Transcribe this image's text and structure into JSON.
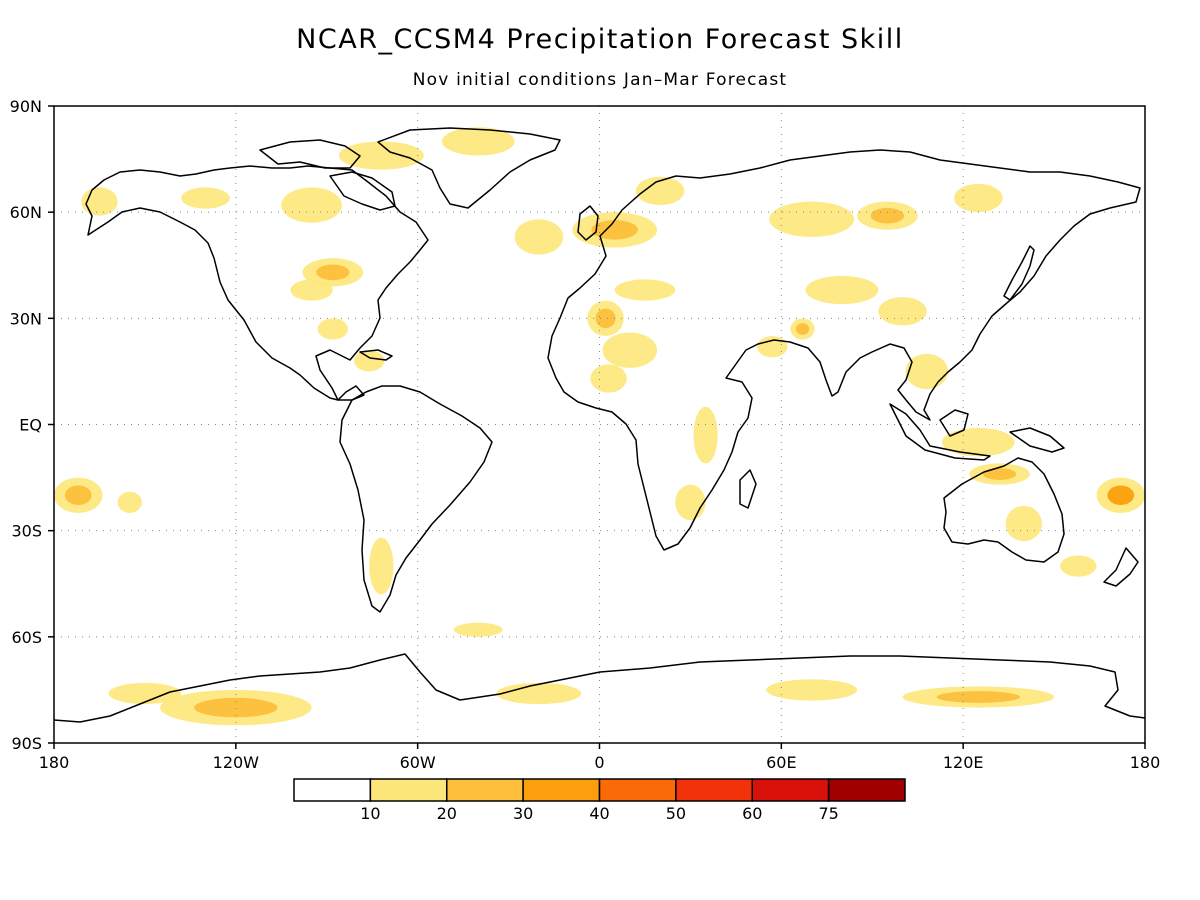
{
  "title": "NCAR_CCSM4 Precipitation Forecast Skill",
  "subtitle": "Nov initial conditions  Jan–Mar Forecast",
  "map": {
    "lat_labels": [
      "90N",
      "60N",
      "30N",
      "EQ",
      "30S",
      "60S",
      "90S"
    ],
    "lat_values": [
      90,
      60,
      30,
      0,
      -30,
      -60,
      -90
    ],
    "lon_labels": [
      "180",
      "120W",
      "60W",
      "0",
      "60E",
      "120E",
      "180"
    ],
    "lon_values": [
      -180,
      -120,
      -60,
      0,
      60,
      120,
      180
    ],
    "grid": "dotted",
    "coastline_color": "#000000"
  },
  "legend": {
    "colors": [
      "#ffffff",
      "#fee77a",
      "#fdbf3c",
      "#fc9f0c",
      "#fa6a06",
      "#f2330a",
      "#d8110a",
      "#a00000"
    ],
    "labels": [
      "10",
      "20",
      "30",
      "40",
      "50",
      "60",
      "75"
    ]
  },
  "skill_regions": [
    {
      "name": "canadian-arctic",
      "lon": -72,
      "lat": 76,
      "rlon": 14,
      "rlat": 4,
      "level": 1
    },
    {
      "name": "greenland-north",
      "lon": -40,
      "lat": 80,
      "rlon": 12,
      "rlat": 4,
      "level": 1
    },
    {
      "name": "alaska",
      "lon": -165,
      "lat": 63,
      "rlon": 6,
      "rlat": 4,
      "level": 1
    },
    {
      "name": "yukon",
      "lon": -130,
      "lat": 64,
      "rlon": 8,
      "rlat": 3,
      "level": 1
    },
    {
      "name": "hudson-bay",
      "lon": -95,
      "lat": 62,
      "rlon": 10,
      "rlat": 5,
      "level": 1
    },
    {
      "name": "great-lakes",
      "lon": -88,
      "lat": 43,
      "rlon": 10,
      "rlat": 4,
      "level": 2
    },
    {
      "name": "us-midwest",
      "lon": -95,
      "lat": 38,
      "rlon": 7,
      "rlat": 3,
      "level": 1
    },
    {
      "name": "gulf-mexico",
      "lon": -88,
      "lat": 27,
      "rlon": 5,
      "rlat": 3,
      "level": 1
    },
    {
      "name": "caribbean",
      "lon": -76,
      "lat": 18,
      "rlon": 5,
      "rlat": 3,
      "level": 1
    },
    {
      "name": "north-atlantic",
      "lon": -20,
      "lat": 53,
      "rlon": 8,
      "rlat": 5,
      "level": 1
    },
    {
      "name": "north-europe",
      "lon": 5,
      "lat": 55,
      "rlon": 14,
      "rlat": 5,
      "level": 2
    },
    {
      "name": "scandinavia",
      "lon": 20,
      "lat": 66,
      "rlon": 8,
      "rlat": 4,
      "level": 1
    },
    {
      "name": "mediterranean",
      "lon": 15,
      "lat": 38,
      "rlon": 10,
      "rlat": 3,
      "level": 1
    },
    {
      "name": "north-africa",
      "lon": 2,
      "lat": 30,
      "rlon": 6,
      "rlat": 5,
      "level": 2
    },
    {
      "name": "sahara",
      "lon": 10,
      "lat": 21,
      "rlon": 9,
      "rlat": 5,
      "level": 1
    },
    {
      "name": "sahel",
      "lon": 3,
      "lat": 13,
      "rlon": 6,
      "rlat": 4,
      "level": 1
    },
    {
      "name": "east-africa",
      "lon": 35,
      "lat": -3,
      "rlon": 4,
      "rlat": 8,
      "level": 1
    },
    {
      "name": "southern-africa",
      "lon": 30,
      "lat": -22,
      "rlon": 5,
      "rlat": 5,
      "level": 1
    },
    {
      "name": "siberia-west",
      "lon": 70,
      "lat": 58,
      "rlon": 14,
      "rlat": 5,
      "level": 1
    },
    {
      "name": "siberia-central",
      "lon": 95,
      "lat": 59,
      "rlon": 10,
      "rlat": 4,
      "level": 2
    },
    {
      "name": "east-siberia",
      "lon": 125,
      "lat": 64,
      "rlon": 8,
      "rlat": 4,
      "level": 1
    },
    {
      "name": "central-asia",
      "lon": 80,
      "lat": 38,
      "rlon": 12,
      "rlat": 4,
      "level": 1
    },
    {
      "name": "tibet",
      "lon": 100,
      "lat": 32,
      "rlon": 8,
      "rlat": 4,
      "level": 1
    },
    {
      "name": "arabia",
      "lon": 57,
      "lat": 22,
      "rlon": 5,
      "rlat": 3,
      "level": 1
    },
    {
      "name": "pakistan",
      "lon": 67,
      "lat": 27,
      "rlon": 4,
      "rlat": 3,
      "level": 2
    },
    {
      "name": "southeast-asia",
      "lon": 108,
      "lat": 15,
      "rlon": 7,
      "rlat": 5,
      "level": 1
    },
    {
      "name": "maritime-continent",
      "lon": 125,
      "lat": -5,
      "rlon": 12,
      "rlat": 4,
      "level": 1
    },
    {
      "name": "north-australia",
      "lon": 132,
      "lat": -14,
      "rlon": 10,
      "rlat": 3,
      "level": 2
    },
    {
      "name": "australia-east",
      "lon": 140,
      "lat": -28,
      "rlon": 6,
      "rlat": 5,
      "level": 1
    },
    {
      "name": "tasman",
      "lon": 158,
      "lat": -40,
      "rlon": 6,
      "rlat": 3,
      "level": 1
    },
    {
      "name": "south-pacific-west",
      "lon": 172,
      "lat": -20,
      "rlon": 8,
      "rlat": 5,
      "level": 3
    },
    {
      "name": "south-pacific-dateline",
      "lon": -172,
      "lat": -20,
      "rlon": 8,
      "rlat": 5,
      "level": 2
    },
    {
      "name": "central-pacific",
      "lon": -155,
      "lat": -22,
      "rlon": 4,
      "rlat": 3,
      "level": 1
    },
    {
      "name": "patagonia",
      "lon": -72,
      "lat": -40,
      "rlon": 4,
      "rlat": 8,
      "level": 1
    },
    {
      "name": "southern-ocean-atlantic",
      "lon": -40,
      "lat": -58,
      "rlon": 8,
      "rlat": 2,
      "level": 1
    },
    {
      "name": "antarctica-west",
      "lon": -120,
      "lat": -80,
      "rlon": 25,
      "rlat": 5,
      "level": 2
    },
    {
      "name": "antarctica-pacific",
      "lon": -150,
      "lat": -76,
      "rlon": 12,
      "rlat": 3,
      "level": 1
    },
    {
      "name": "antarctica-atlantic",
      "lon": -20,
      "lat": -76,
      "rlon": 14,
      "rlat": 3,
      "level": 1
    },
    {
      "name": "antarctica-east",
      "lon": 70,
      "lat": -75,
      "rlon": 15,
      "rlat": 3,
      "level": 1
    },
    {
      "name": "antarctica-indian",
      "lon": 125,
      "lat": -77,
      "rlon": 25,
      "rlat": 3,
      "level": 2
    }
  ]
}
